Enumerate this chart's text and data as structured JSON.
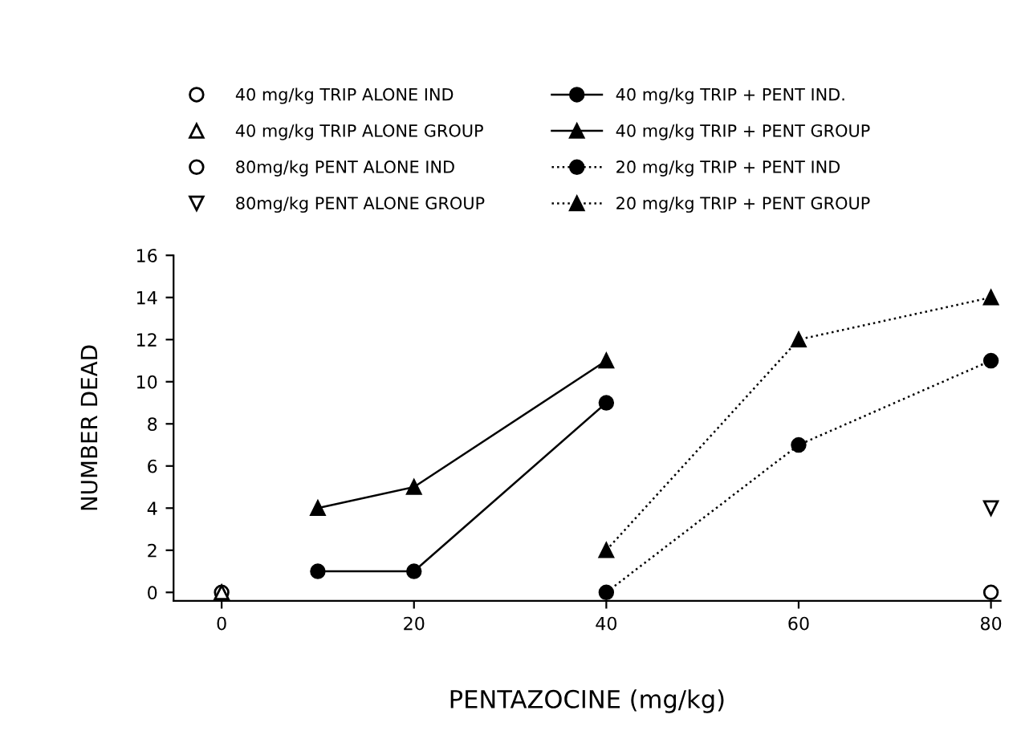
{
  "chart_data": {
    "type": "line",
    "xlabel": "PENTAZOCINE (mg/kg)",
    "ylabel": "NUMBER DEAD",
    "xlim": [
      -5,
      81
    ],
    "xticks": [
      0,
      20,
      40,
      60,
      80
    ],
    "ylim": [
      -0.4,
      16
    ],
    "yticks": [
      0,
      2,
      4,
      6,
      8,
      10,
      12,
      14,
      16
    ],
    "grid": false,
    "legend": "top",
    "series": [
      {
        "name": "40 mg/kg TRIP ALONE IND",
        "type": "scatter",
        "marker": "circle",
        "color": "#000000",
        "x": [
          0
        ],
        "values": [
          0
        ]
      },
      {
        "name": "40 mg/kg TRIP ALONE GROUP",
        "type": "scatter",
        "marker": "triangle",
        "color": "#000000",
        "x": [
          0
        ],
        "values": [
          0
        ]
      },
      {
        "name": "80mg/kg PENT ALONE IND",
        "type": "scatter",
        "marker": "circle",
        "color": "#000000",
        "x": [
          80
        ],
        "values": [
          0
        ]
      },
      {
        "name": "80mg/kg PENT ALONE GROUP",
        "type": "scatter",
        "marker": "triangle_down",
        "color": "#000000",
        "x": [
          80
        ],
        "values": [
          4
        ]
      },
      {
        "name": "40 mg/kg TRIP + PENT IND.",
        "marker": "circle",
        "line_style": "solid",
        "color": "#000000",
        "x": [
          10,
          20,
          40
        ],
        "values": [
          1,
          1,
          9
        ]
      },
      {
        "name": "40 mg/kg TRIP + PENT GROUP",
        "marker": "triangle",
        "line_style": "solid",
        "color": "#000000",
        "x": [
          10,
          20,
          40
        ],
        "values": [
          4,
          5,
          11
        ]
      },
      {
        "name": "20 mg/kg TRIP + PENT IND",
        "marker": "circle",
        "line_style": "dotted",
        "color": "#000000",
        "x": [
          40,
          60,
          80
        ],
        "values": [
          0,
          7,
          11
        ]
      },
      {
        "name": "20 mg/kg TRIP + PENT GROUP",
        "marker": "triangle",
        "line_style": "dotted",
        "color": "#000000",
        "x": [
          40,
          60,
          80
        ],
        "values": [
          2,
          12,
          14
        ]
      }
    ]
  }
}
